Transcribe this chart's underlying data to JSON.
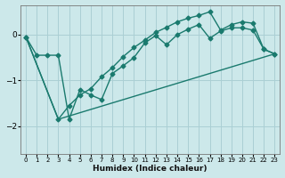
{
  "xlabel": "Humidex (Indice chaleur)",
  "ylabel": "",
  "bg_color": "#cce8ea",
  "grid_color": "#aacfd4",
  "line_color": "#1a7a6e",
  "xlim": [
    -0.5,
    23.5
  ],
  "ylim": [
    -2.6,
    0.65
  ],
  "yticks": [
    -2,
    -1,
    0
  ],
  "xticks": [
    0,
    1,
    2,
    3,
    4,
    5,
    6,
    7,
    8,
    9,
    10,
    11,
    12,
    13,
    14,
    15,
    16,
    17,
    18,
    19,
    20,
    21,
    22,
    23
  ],
  "line1_x": [
    0,
    1,
    2,
    3,
    4,
    5,
    6,
    7,
    8,
    9,
    10,
    11,
    12,
    13,
    14,
    15,
    16,
    17,
    18,
    19,
    20,
    21,
    22,
    23
  ],
  "line1_y": [
    -0.05,
    -0.45,
    -0.45,
    -0.45,
    -1.85,
    -1.2,
    -1.32,
    -1.42,
    -0.85,
    -0.68,
    -0.5,
    -0.18,
    -0.02,
    -0.22,
    0.0,
    0.12,
    0.22,
    -0.08,
    0.08,
    0.15,
    0.15,
    0.1,
    -0.32,
    -0.42
  ],
  "line2_x": [
    0,
    3,
    4,
    5,
    6,
    7,
    8,
    9,
    10,
    11,
    12,
    13,
    14,
    15,
    16,
    17,
    18,
    19,
    20,
    21,
    22,
    23
  ],
  "line2_y": [
    -0.05,
    -1.85,
    -1.55,
    -1.32,
    -1.18,
    -0.92,
    -0.72,
    -0.48,
    -0.28,
    -0.12,
    0.05,
    0.16,
    0.28,
    0.36,
    0.42,
    0.5,
    0.1,
    0.22,
    0.28,
    0.25,
    -0.32,
    -0.42
  ],
  "line3_x": [
    0,
    3,
    23
  ],
  "line3_y": [
    -0.05,
    -1.85,
    -0.42
  ]
}
